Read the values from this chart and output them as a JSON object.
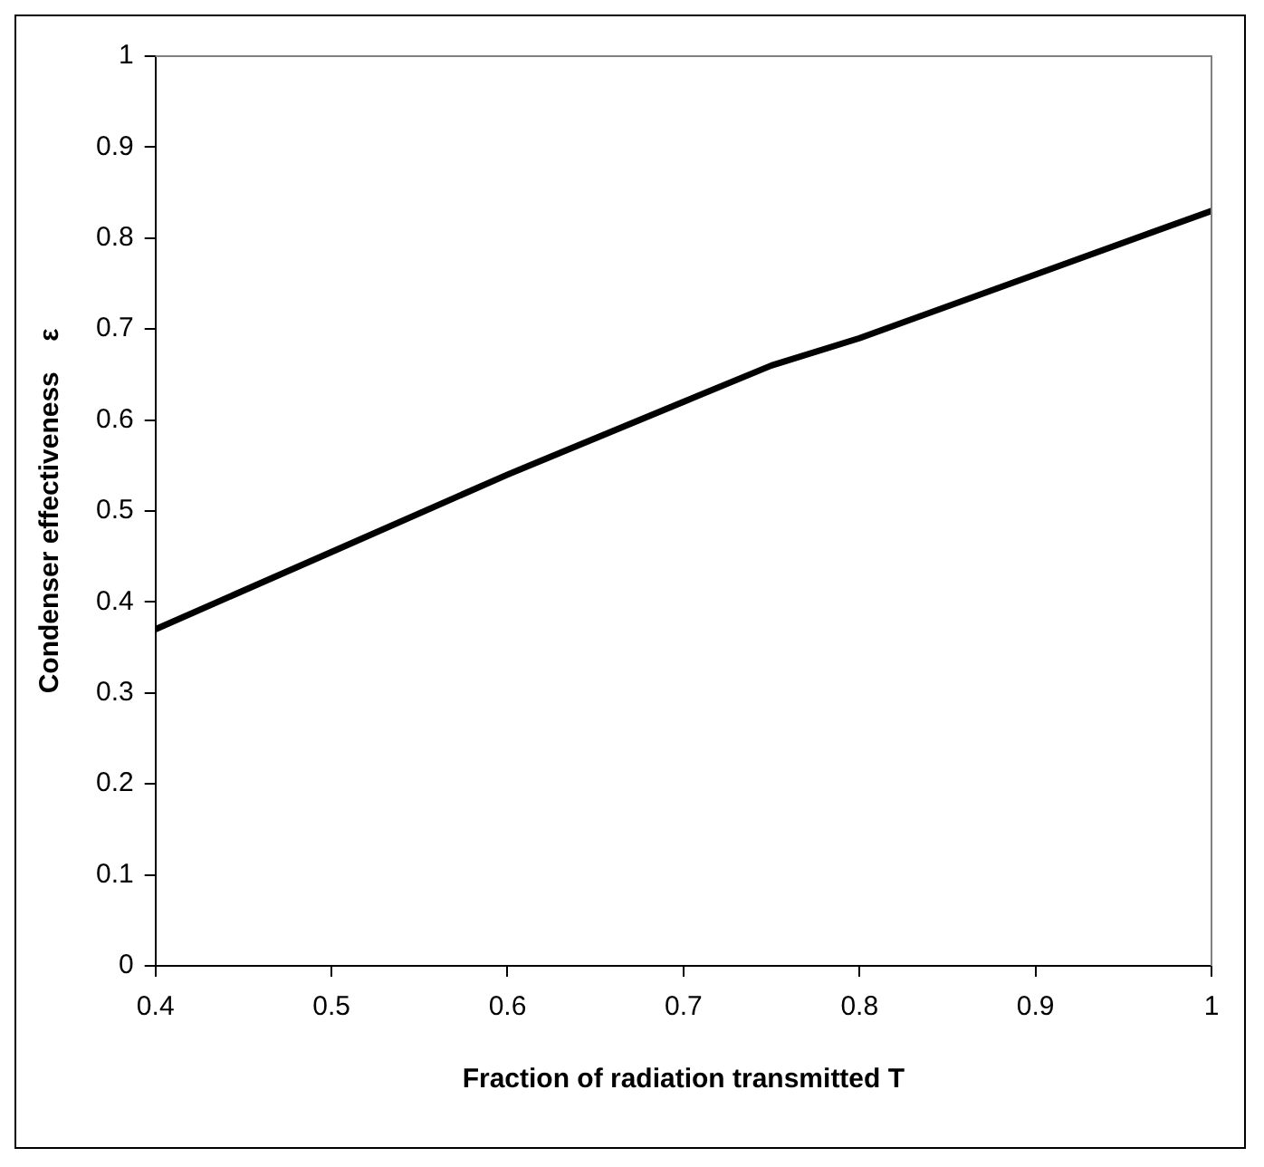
{
  "chart_data": {
    "type": "line",
    "xlabel": "Fraction of radiation transmitted T",
    "ylabel": "Condenser effectiveness    ε",
    "x": [
      0.4,
      0.5,
      0.6,
      0.7,
      0.75,
      0.8,
      0.9,
      1.0
    ],
    "series": [
      {
        "color": "#000000",
        "values": [
          0.37,
          0.455,
          0.54,
          0.62,
          0.66,
          0.69,
          0.76,
          0.83
        ]
      }
    ],
    "xlim": [
      0.4,
      1
    ],
    "xticks": [
      0.4,
      0.5,
      0.6,
      0.7,
      0.8,
      0.9,
      1
    ],
    "ylim": [
      0,
      1
    ],
    "yticks": [
      0,
      0.1,
      0.2,
      0.3,
      0.4,
      0.5,
      0.6,
      0.7,
      0.8,
      0.9,
      1
    ],
    "grid": false,
    "legend": false,
    "marker": "none",
    "line_style": "solid"
  }
}
